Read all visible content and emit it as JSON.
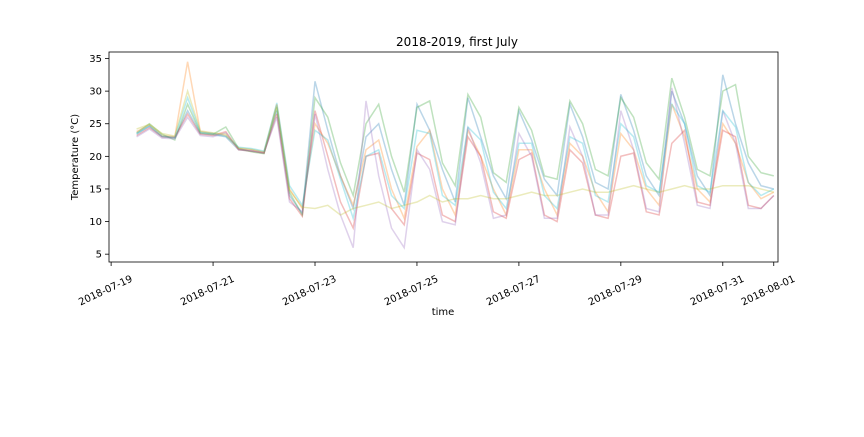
{
  "chart_data": {
    "type": "line",
    "title": "2018-2019, first July",
    "xlabel": "time",
    "ylabel": "Temperature (°C)",
    "xlim": [
      "2018-07-18T23:00",
      "2018-08-01T02:00"
    ],
    "ylim": [
      3.8,
      36.0
    ],
    "grid": false,
    "line_alpha": 0.3,
    "x_ticks": [
      "2018-07-19",
      "2018-07-21",
      "2018-07-23",
      "2018-07-25",
      "2018-07-27",
      "2018-07-29",
      "2018-07-31",
      "2018-08-01"
    ],
    "y_ticks": [
      5,
      10,
      15,
      20,
      25,
      30,
      35
    ],
    "common_x": [
      "2018-07-19T12:00",
      "2018-07-19T18:00",
      "2018-07-20T00:00",
      "2018-07-20T06:00",
      "2018-07-20T12:00",
      "2018-07-20T18:00",
      "2018-07-21T00:00",
      "2018-07-21T06:00",
      "2018-07-21T12:00",
      "2018-07-21T18:00",
      "2018-07-22T00:00",
      "2018-07-22T06:00",
      "2018-07-22T12:00",
      "2018-07-22T18:00",
      "2018-07-23T00:00",
      "2018-07-23T06:00",
      "2018-07-23T12:00",
      "2018-07-23T18:00",
      "2018-07-24T00:00",
      "2018-07-24T06:00",
      "2018-07-24T12:00",
      "2018-07-24T18:00",
      "2018-07-25T00:00",
      "2018-07-25T06:00",
      "2018-07-25T12:00",
      "2018-07-25T18:00",
      "2018-07-26T00:00",
      "2018-07-26T06:00",
      "2018-07-26T12:00",
      "2018-07-26T18:00",
      "2018-07-27T00:00",
      "2018-07-27T06:00",
      "2018-07-27T12:00",
      "2018-07-27T18:00",
      "2018-07-28T00:00",
      "2018-07-28T06:00",
      "2018-07-28T12:00",
      "2018-07-28T18:00",
      "2018-07-29T00:00",
      "2018-07-29T06:00",
      "2018-07-29T12:00",
      "2018-07-29T18:00",
      "2018-07-30T00:00",
      "2018-07-30T06:00",
      "2018-07-30T12:00",
      "2018-07-30T18:00",
      "2018-07-31T00:00",
      "2018-07-31T06:00",
      "2018-07-31T12:00",
      "2018-07-31T18:00",
      "2018-08-01T00:00"
    ],
    "series": [
      {
        "color": "#1f77b4",
        "values": [
          23.5,
          24.6,
          23.0,
          22.8,
          27.0,
          23.5,
          23.3,
          23.0,
          21.0,
          20.8,
          20.5,
          27.0,
          14.0,
          11.2,
          31.5,
          24.0,
          17.0,
          12.0,
          23.0,
          25.0,
          18.0,
          12.5,
          28.0,
          24.0,
          18.0,
          13.0,
          29.0,
          23.0,
          17.0,
          13.5,
          27.0,
          22.5,
          16.5,
          14.0,
          28.0,
          23.0,
          16.0,
          15.0,
          29.5,
          24.0,
          17.0,
          14.0,
          30.0,
          25.0,
          17.0,
          14.0,
          32.5,
          25.0,
          19.0,
          15.5,
          15.0
        ]
      },
      {
        "color": "#ff7f0e",
        "values": [
          23.8,
          24.8,
          23.2,
          23.0,
          34.5,
          23.8,
          23.5,
          23.2,
          21.2,
          21.0,
          20.6,
          28.0,
          15.0,
          12.0,
          25.0,
          22.0,
          17.0,
          12.5,
          21.0,
          22.5,
          15.0,
          10.5,
          21.5,
          24.0,
          15.0,
          11.0,
          24.0,
          20.0,
          15.0,
          11.0,
          21.0,
          21.0,
          15.0,
          11.0,
          22.0,
          20.0,
          14.5,
          11.5,
          23.5,
          21.0,
          15.0,
          12.5,
          28.0,
          23.0,
          15.0,
          13.0,
          25.0,
          22.0,
          16.0,
          13.5,
          14.5
        ]
      },
      {
        "color": "#2ca02c",
        "values": [
          23.6,
          25.0,
          23.4,
          22.5,
          28.0,
          23.6,
          23.4,
          24.5,
          21.2,
          20.7,
          20.4,
          27.5,
          14.5,
          11.0,
          29.0,
          26.0,
          19.0,
          14.0,
          25.0,
          28.0,
          20.0,
          14.5,
          27.5,
          28.5,
          19.0,
          15.5,
          29.5,
          26.0,
          17.5,
          16.0,
          27.5,
          24.0,
          17.0,
          16.5,
          28.5,
          25.0,
          18.0,
          17.0,
          29.0,
          26.0,
          19.0,
          16.5,
          32.0,
          26.0,
          18.0,
          17.0,
          30.0,
          31.0,
          20.0,
          17.5,
          17.0
        ]
      },
      {
        "color": "#d62728",
        "values": [
          23.2,
          24.4,
          23.0,
          22.9,
          26.5,
          23.4,
          23.2,
          23.8,
          21.0,
          20.8,
          20.5,
          26.5,
          13.5,
          10.8,
          27.0,
          20.0,
          13.0,
          9.0,
          20.0,
          20.5,
          12.0,
          9.5,
          20.5,
          19.5,
          11.0,
          10.0,
          23.0,
          20.0,
          11.5,
          10.5,
          19.5,
          20.5,
          11.0,
          10.0,
          21.0,
          19.0,
          11.0,
          10.5,
          20.0,
          20.5,
          11.5,
          11.0,
          22.0,
          24.0,
          13.0,
          12.5,
          24.0,
          23.0,
          12.5,
          12.0,
          14.0
        ]
      },
      {
        "color": "#9467bd",
        "values": [
          23.0,
          24.2,
          22.8,
          22.7,
          26.0,
          23.2,
          23.0,
          23.6,
          21.1,
          20.9,
          20.6,
          26.0,
          13.0,
          11.5,
          26.5,
          18.0,
          11.0,
          6.0,
          28.5,
          17.0,
          9.0,
          6.0,
          21.0,
          18.0,
          10.0,
          9.5,
          24.5,
          19.0,
          10.5,
          11.0,
          23.5,
          20.0,
          10.5,
          10.5,
          24.5,
          20.0,
          11.0,
          11.0,
          27.0,
          21.0,
          12.0,
          11.5,
          30.5,
          22.0,
          12.5,
          12.0,
          27.0,
          22.0,
          12.0,
          12.0,
          14.0
        ]
      },
      {
        "color": "#bcbd22",
        "values": [
          24.2,
          24.9,
          23.5,
          23.1,
          30.0,
          23.9,
          23.6,
          23.4,
          21.3,
          21.1,
          20.7,
          27.8,
          14.8,
          12.2,
          12.0,
          12.5,
          11.0,
          12.0,
          12.5,
          13.0,
          12.0,
          12.5,
          13.0,
          14.0,
          13.0,
          13.5,
          13.5,
          14.0,
          13.5,
          13.5,
          14.0,
          14.5,
          14.0,
          14.0,
          14.5,
          15.0,
          14.5,
          14.5,
          15.0,
          15.5,
          15.0,
          14.5,
          15.0,
          15.5,
          15.0,
          15.0,
          15.5,
          15.5,
          15.5,
          15.0,
          14.5
        ]
      },
      {
        "color": "#17becf",
        "values": [
          23.4,
          24.7,
          23.1,
          22.9,
          29.0,
          23.7,
          23.5,
          23.1,
          21.4,
          21.2,
          20.8,
          28.2,
          15.5,
          12.5,
          24.0,
          22.5,
          16.5,
          10.5,
          20.0,
          21.0,
          14.0,
          12.0,
          24.0,
          23.5,
          14.0,
          12.5,
          24.5,
          22.5,
          14.5,
          12.0,
          22.0,
          22.0,
          14.0,
          12.0,
          23.0,
          22.0,
          14.0,
          13.0,
          25.0,
          23.0,
          15.5,
          14.5,
          28.0,
          25.0,
          15.5,
          14.5,
          27.0,
          24.5,
          16.0,
          14.0,
          15.0
        ]
      }
    ]
  }
}
